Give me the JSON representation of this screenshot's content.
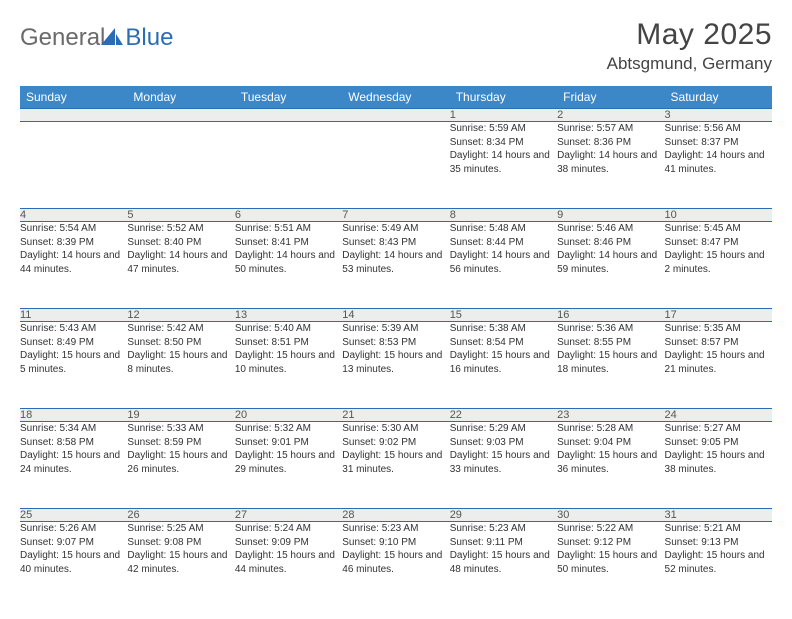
{
  "brand": {
    "part1": "General",
    "part2": "Blue"
  },
  "title": "May 2025",
  "location": "Abtsgmund, Germany",
  "colors": {
    "header_bg": "#3b87c8",
    "header_text": "#ffffff",
    "border": "#2a6db5",
    "daynum_bg": "#eceded",
    "text": "#333333",
    "title_text": "#444444",
    "logo_gray": "#6a6a6a",
    "logo_blue": "#2a6db5"
  },
  "weekdays": [
    "Sunday",
    "Monday",
    "Tuesday",
    "Wednesday",
    "Thursday",
    "Friday",
    "Saturday"
  ],
  "weeks": [
    [
      {
        "n": "",
        "sr": "",
        "ss": "",
        "dl": ""
      },
      {
        "n": "",
        "sr": "",
        "ss": "",
        "dl": ""
      },
      {
        "n": "",
        "sr": "",
        "ss": "",
        "dl": ""
      },
      {
        "n": "",
        "sr": "",
        "ss": "",
        "dl": ""
      },
      {
        "n": "1",
        "sr": "Sunrise: 5:59 AM",
        "ss": "Sunset: 8:34 PM",
        "dl": "Daylight: 14 hours and 35 minutes."
      },
      {
        "n": "2",
        "sr": "Sunrise: 5:57 AM",
        "ss": "Sunset: 8:36 PM",
        "dl": "Daylight: 14 hours and 38 minutes."
      },
      {
        "n": "3",
        "sr": "Sunrise: 5:56 AM",
        "ss": "Sunset: 8:37 PM",
        "dl": "Daylight: 14 hours and 41 minutes."
      }
    ],
    [
      {
        "n": "4",
        "sr": "Sunrise: 5:54 AM",
        "ss": "Sunset: 8:39 PM",
        "dl": "Daylight: 14 hours and 44 minutes."
      },
      {
        "n": "5",
        "sr": "Sunrise: 5:52 AM",
        "ss": "Sunset: 8:40 PM",
        "dl": "Daylight: 14 hours and 47 minutes."
      },
      {
        "n": "6",
        "sr": "Sunrise: 5:51 AM",
        "ss": "Sunset: 8:41 PM",
        "dl": "Daylight: 14 hours and 50 minutes."
      },
      {
        "n": "7",
        "sr": "Sunrise: 5:49 AM",
        "ss": "Sunset: 8:43 PM",
        "dl": "Daylight: 14 hours and 53 minutes."
      },
      {
        "n": "8",
        "sr": "Sunrise: 5:48 AM",
        "ss": "Sunset: 8:44 PM",
        "dl": "Daylight: 14 hours and 56 minutes."
      },
      {
        "n": "9",
        "sr": "Sunrise: 5:46 AM",
        "ss": "Sunset: 8:46 PM",
        "dl": "Daylight: 14 hours and 59 minutes."
      },
      {
        "n": "10",
        "sr": "Sunrise: 5:45 AM",
        "ss": "Sunset: 8:47 PM",
        "dl": "Daylight: 15 hours and 2 minutes."
      }
    ],
    [
      {
        "n": "11",
        "sr": "Sunrise: 5:43 AM",
        "ss": "Sunset: 8:49 PM",
        "dl": "Daylight: 15 hours and 5 minutes."
      },
      {
        "n": "12",
        "sr": "Sunrise: 5:42 AM",
        "ss": "Sunset: 8:50 PM",
        "dl": "Daylight: 15 hours and 8 minutes."
      },
      {
        "n": "13",
        "sr": "Sunrise: 5:40 AM",
        "ss": "Sunset: 8:51 PM",
        "dl": "Daylight: 15 hours and 10 minutes."
      },
      {
        "n": "14",
        "sr": "Sunrise: 5:39 AM",
        "ss": "Sunset: 8:53 PM",
        "dl": "Daylight: 15 hours and 13 minutes."
      },
      {
        "n": "15",
        "sr": "Sunrise: 5:38 AM",
        "ss": "Sunset: 8:54 PM",
        "dl": "Daylight: 15 hours and 16 minutes."
      },
      {
        "n": "16",
        "sr": "Sunrise: 5:36 AM",
        "ss": "Sunset: 8:55 PM",
        "dl": "Daylight: 15 hours and 18 minutes."
      },
      {
        "n": "17",
        "sr": "Sunrise: 5:35 AM",
        "ss": "Sunset: 8:57 PM",
        "dl": "Daylight: 15 hours and 21 minutes."
      }
    ],
    [
      {
        "n": "18",
        "sr": "Sunrise: 5:34 AM",
        "ss": "Sunset: 8:58 PM",
        "dl": "Daylight: 15 hours and 24 minutes."
      },
      {
        "n": "19",
        "sr": "Sunrise: 5:33 AM",
        "ss": "Sunset: 8:59 PM",
        "dl": "Daylight: 15 hours and 26 minutes."
      },
      {
        "n": "20",
        "sr": "Sunrise: 5:32 AM",
        "ss": "Sunset: 9:01 PM",
        "dl": "Daylight: 15 hours and 29 minutes."
      },
      {
        "n": "21",
        "sr": "Sunrise: 5:30 AM",
        "ss": "Sunset: 9:02 PM",
        "dl": "Daylight: 15 hours and 31 minutes."
      },
      {
        "n": "22",
        "sr": "Sunrise: 5:29 AM",
        "ss": "Sunset: 9:03 PM",
        "dl": "Daylight: 15 hours and 33 minutes."
      },
      {
        "n": "23",
        "sr": "Sunrise: 5:28 AM",
        "ss": "Sunset: 9:04 PM",
        "dl": "Daylight: 15 hours and 36 minutes."
      },
      {
        "n": "24",
        "sr": "Sunrise: 5:27 AM",
        "ss": "Sunset: 9:05 PM",
        "dl": "Daylight: 15 hours and 38 minutes."
      }
    ],
    [
      {
        "n": "25",
        "sr": "Sunrise: 5:26 AM",
        "ss": "Sunset: 9:07 PM",
        "dl": "Daylight: 15 hours and 40 minutes."
      },
      {
        "n": "26",
        "sr": "Sunrise: 5:25 AM",
        "ss": "Sunset: 9:08 PM",
        "dl": "Daylight: 15 hours and 42 minutes."
      },
      {
        "n": "27",
        "sr": "Sunrise: 5:24 AM",
        "ss": "Sunset: 9:09 PM",
        "dl": "Daylight: 15 hours and 44 minutes."
      },
      {
        "n": "28",
        "sr": "Sunrise: 5:23 AM",
        "ss": "Sunset: 9:10 PM",
        "dl": "Daylight: 15 hours and 46 minutes."
      },
      {
        "n": "29",
        "sr": "Sunrise: 5:23 AM",
        "ss": "Sunset: 9:11 PM",
        "dl": "Daylight: 15 hours and 48 minutes."
      },
      {
        "n": "30",
        "sr": "Sunrise: 5:22 AM",
        "ss": "Sunset: 9:12 PM",
        "dl": "Daylight: 15 hours and 50 minutes."
      },
      {
        "n": "31",
        "sr": "Sunrise: 5:21 AM",
        "ss": "Sunset: 9:13 PM",
        "dl": "Daylight: 15 hours and 52 minutes."
      }
    ]
  ]
}
